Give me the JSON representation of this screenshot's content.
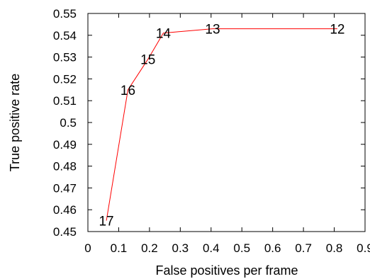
{
  "chart_data": {
    "type": "line",
    "title": "",
    "xlabel": "False positives per frame",
    "ylabel": "True positive rate",
    "xlim": [
      0,
      0.9
    ],
    "ylim": [
      0.45,
      0.55
    ],
    "xticks": [
      "0",
      "0.1",
      "0.2",
      "0.3",
      "0.4",
      "0.5",
      "0.6",
      "0.7",
      "0.8",
      "0.9"
    ],
    "yticks": [
      "0.45",
      "0.46",
      "0.47",
      "0.48",
      "0.49",
      "0.5",
      "0.51",
      "0.52",
      "0.53",
      "0.54",
      "0.55"
    ],
    "grid": false,
    "legend": "none",
    "series": [
      {
        "color": "#ff0000",
        "points": [
          {
            "x": 0.06,
            "y": 0.455,
            "label": "17"
          },
          {
            "x": 0.13,
            "y": 0.515,
            "label": "16"
          },
          {
            "x": 0.195,
            "y": 0.529,
            "label": "15"
          },
          {
            "x": 0.245,
            "y": 0.541,
            "label": "14"
          },
          {
            "x": 0.405,
            "y": 0.543,
            "label": "13"
          },
          {
            "x": 0.81,
            "y": 0.543,
            "label": "12"
          }
        ]
      }
    ]
  }
}
